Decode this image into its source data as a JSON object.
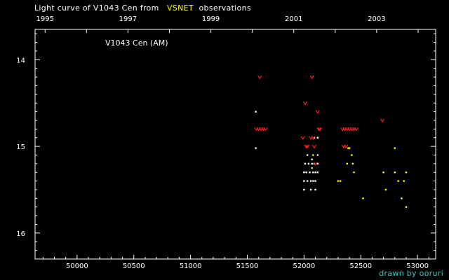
{
  "header": {
    "title_prefix": "Light curve of V1043 Cen from",
    "source": "VSNET",
    "title_suffix": "observations"
  },
  "credit": "drawn by ooruri",
  "colors": {
    "background": "#000000",
    "axes": "#ffffff",
    "source_label": "#ffff00",
    "credit": "#33cccc",
    "visual_estimate": "#ffffff",
    "ccd_estimate": "#ffff00",
    "upper_limit": "#ff2020"
  },
  "chart_data": {
    "type": "scatter",
    "label": "V1043 Cen (AM)",
    "x_axis": {
      "quantity": "JD - 2400000",
      "lim": [
        49630,
        53160
      ],
      "ticks": [
        50000,
        50500,
        51000,
        51500,
        52000,
        52500,
        53000
      ],
      "tick_labels": [
        "50000",
        "50500",
        "51000",
        "51500",
        "52000",
        "52500",
        "53000"
      ]
    },
    "top_axis": {
      "quantity": "year",
      "ticks": [
        1995,
        1997,
        1999,
        2001,
        2003
      ],
      "tick_labels": [
        "1995",
        "1997",
        "1999",
        "2001",
        "2003"
      ]
    },
    "y_axis": {
      "quantity": "magnitude",
      "inverted": true,
      "lim": [
        13.65,
        16.3
      ],
      "ticks": [
        14,
        15,
        16
      ],
      "tick_labels": [
        "14",
        "15",
        "16"
      ]
    },
    "series": [
      {
        "kind": "visual",
        "marker": "dot",
        "color": "#ffffff",
        "points": [
          [
            51575,
            14.6
          ],
          [
            51575,
            15.02
          ],
          [
            52000,
            15.3
          ],
          [
            52000,
            15.4
          ],
          [
            52000,
            15.5
          ],
          [
            52010,
            15.2
          ],
          [
            52020,
            15.3
          ],
          [
            52030,
            15.4
          ],
          [
            52030,
            15.1
          ],
          [
            52040,
            15.2
          ],
          [
            52050,
            15.3
          ],
          [
            52060,
            15.4
          ],
          [
            52060,
            15.5
          ],
          [
            52070,
            15.15
          ],
          [
            52070,
            15.2
          ],
          [
            52080,
            15.3
          ],
          [
            52080,
            15.4
          ],
          [
            52090,
            14.9
          ],
          [
            52090,
            15.2
          ],
          [
            52100,
            15.3
          ],
          [
            52100,
            15.4
          ],
          [
            52100,
            15.5
          ],
          [
            52120,
            15.1
          ],
          [
            52120,
            15.2
          ],
          [
            52120,
            15.3
          ],
          [
            52120,
            14.9
          ]
        ]
      },
      {
        "kind": "ccd",
        "marker": "dot",
        "color": "#ffff00",
        "points": [
          [
            52070,
            15.25
          ],
          [
            52080,
            15.1
          ],
          [
            52300,
            15.4
          ],
          [
            52320,
            15.4
          ],
          [
            52380,
            15.2
          ],
          [
            52390,
            15.02
          ],
          [
            52400,
            15.02
          ],
          [
            52420,
            15.1
          ],
          [
            52430,
            15.2
          ],
          [
            52440,
            15.3
          ],
          [
            52520,
            15.6
          ],
          [
            52700,
            15.3
          ],
          [
            52720,
            15.5
          ],
          [
            52800,
            15.3
          ],
          [
            52800,
            15.02
          ],
          [
            52830,
            15.4
          ],
          [
            52860,
            15.6
          ],
          [
            52880,
            15.4
          ],
          [
            52900,
            15.3
          ],
          [
            52900,
            15.7
          ]
        ]
      },
      {
        "kind": "upper_limit",
        "marker": "v",
        "color": "#ff2020",
        "points": [
          [
            51580,
            14.8
          ],
          [
            51600,
            14.8
          ],
          [
            51610,
            14.2
          ],
          [
            51620,
            14.8
          ],
          [
            51640,
            14.8
          ],
          [
            51660,
            14.8
          ],
          [
            51990,
            14.9
          ],
          [
            52010,
            14.5
          ],
          [
            52020,
            15.0
          ],
          [
            52030,
            15.0
          ],
          [
            52060,
            14.9
          ],
          [
            52070,
            14.2
          ],
          [
            52080,
            14.9
          ],
          [
            52090,
            15.0
          ],
          [
            52100,
            15.2
          ],
          [
            52120,
            14.6
          ],
          [
            52130,
            14.8
          ],
          [
            52140,
            14.8
          ],
          [
            52340,
            14.8
          ],
          [
            52360,
            14.8
          ],
          [
            52380,
            14.8
          ],
          [
            52400,
            14.8
          ],
          [
            52420,
            14.8
          ],
          [
            52440,
            14.8
          ],
          [
            52460,
            14.8
          ],
          [
            52350,
            15.0
          ],
          [
            52370,
            15.0
          ],
          [
            52690,
            14.7
          ]
        ]
      }
    ]
  }
}
